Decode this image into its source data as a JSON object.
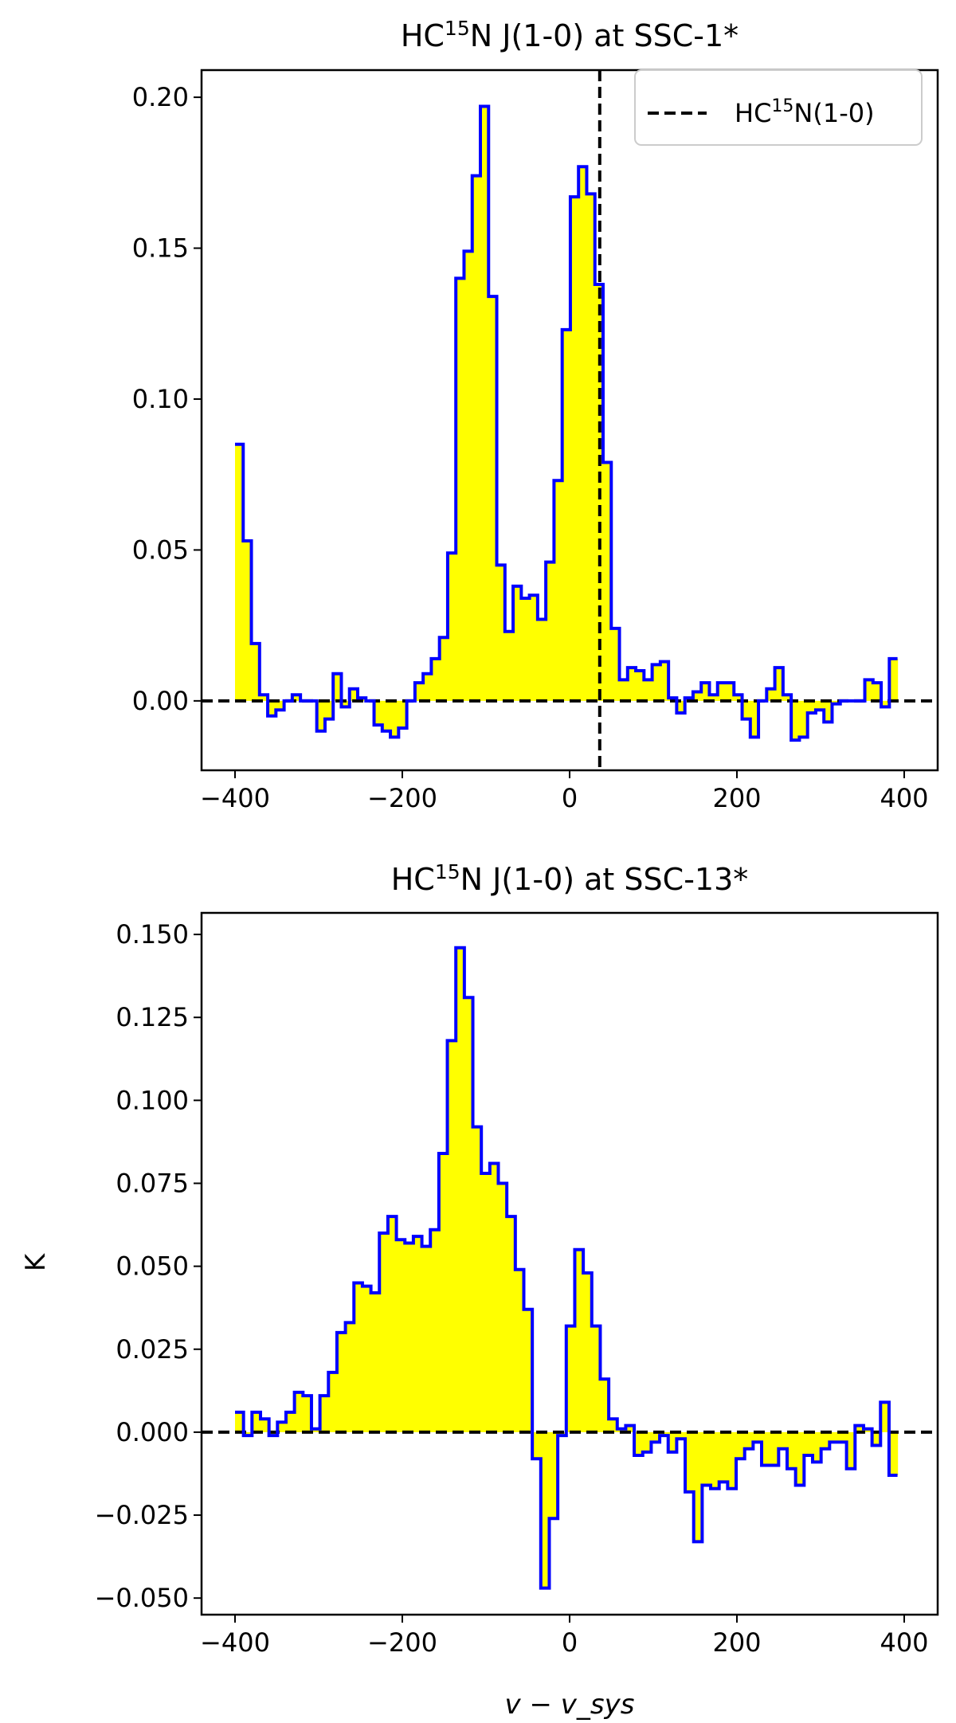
{
  "colors": {
    "fill": "#ffff00",
    "step_line": "#0000ff",
    "reference": "#000000",
    "axes": "#000000"
  },
  "chart_data": [
    {
      "type": "area",
      "style": "step histogram filled from zero",
      "title": {
        "prefix": "HC",
        "sup": "15",
        "suffix": "N J(1-0) at SSC-1*"
      },
      "xlabel": "",
      "ylabel": "",
      "xlim": [
        -440,
        440
      ],
      "ylim": [
        -0.023,
        0.209
      ],
      "xticks": [
        -400,
        -200,
        0,
        200,
        400
      ],
      "xtick_labels": [
        "−400",
        "−200",
        "0",
        "200",
        "400"
      ],
      "yticks": [
        0.0,
        0.05,
        0.1,
        0.15,
        0.2
      ],
      "ytick_labels": [
        "0.00",
        "0.05",
        "0.10",
        "0.15",
        "0.20"
      ],
      "step_edges": [
        -400,
        392
      ],
      "values": [
        0.085,
        0.053,
        0.019,
        0.002,
        -0.005,
        -0.003,
        0.0,
        0.002,
        0.0,
        0.0,
        -0.01,
        -0.006,
        0.009,
        -0.002,
        0.004,
        0.001,
        0.0,
        -0.008,
        -0.01,
        -0.012,
        -0.009,
        0.0,
        0.006,
        0.009,
        0.014,
        0.021,
        0.049,
        0.14,
        0.149,
        0.174,
        0.197,
        0.134,
        0.045,
        0.023,
        0.038,
        0.034,
        0.035,
        0.027,
        0.046,
        0.073,
        0.123,
        0.167,
        0.177,
        0.168,
        0.138,
        0.079,
        0.024,
        0.007,
        0.011,
        0.01,
        0.007,
        0.012,
        0.013,
        0.001,
        -0.004,
        0.001,
        0.003,
        0.006,
        0.002,
        0.006,
        0.006,
        0.002,
        -0.006,
        -0.012,
        0.0,
        0.004,
        0.011,
        0.002,
        -0.013,
        -0.012,
        -0.004,
        -0.003,
        -0.007,
        -0.001,
        0.0,
        0.0,
        0.0,
        0.007,
        0.006,
        -0.002,
        0.014
      ],
      "zero_line": true,
      "reference_vline": {
        "x": 36,
        "label_prefix": "HC",
        "label_sup": "15",
        "label_suffix": "N(1-0)"
      },
      "legend": "top-right"
    },
    {
      "type": "area",
      "style": "step histogram filled from zero",
      "title": {
        "prefix": "HC",
        "sup": "15",
        "suffix": "N J(1-0) at SSC-13*"
      },
      "xlabel": "v − v_sys",
      "ylabel": "K",
      "xlim": [
        -440,
        440
      ],
      "ylim": [
        -0.055,
        0.1565
      ],
      "xticks": [
        -400,
        -200,
        0,
        200,
        400
      ],
      "xtick_labels": [
        "−400",
        "−200",
        "0",
        "200",
        "400"
      ],
      "yticks": [
        -0.05,
        -0.025,
        0.0,
        0.025,
        0.05,
        0.075,
        0.1,
        0.125,
        0.15
      ],
      "ytick_labels": [
        "−0.050",
        "−0.025",
        "0.000",
        "0.025",
        "0.050",
        "0.075",
        "0.100",
        "0.125",
        "0.150"
      ],
      "step_edges": [
        -400,
        392
      ],
      "values": [
        0.006,
        -0.001,
        0.006,
        0.004,
        -0.001,
        0.003,
        0.006,
        0.012,
        0.011,
        0.001,
        0.011,
        0.018,
        0.03,
        0.033,
        0.045,
        0.044,
        0.042,
        0.06,
        0.065,
        0.058,
        0.057,
        0.059,
        0.056,
        0.061,
        0.084,
        0.118,
        0.146,
        0.131,
        0.092,
        0.078,
        0.081,
        0.075,
        0.065,
        0.049,
        0.037,
        -0.008,
        -0.047,
        -0.026,
        -0.001,
        0.032,
        0.055,
        0.048,
        0.032,
        0.016,
        0.004,
        0.001,
        0.002,
        -0.007,
        -0.006,
        -0.003,
        -0.001,
        -0.006,
        -0.002,
        -0.018,
        -0.033,
        -0.016,
        -0.017,
        -0.015,
        -0.017,
        -0.008,
        -0.005,
        -0.003,
        -0.01,
        -0.01,
        -0.005,
        -0.011,
        -0.016,
        -0.007,
        -0.009,
        -0.005,
        -0.003,
        -0.003,
        -0.011,
        0.002,
        0.001,
        -0.004,
        0.009,
        -0.013
      ],
      "zero_line": true
    }
  ]
}
